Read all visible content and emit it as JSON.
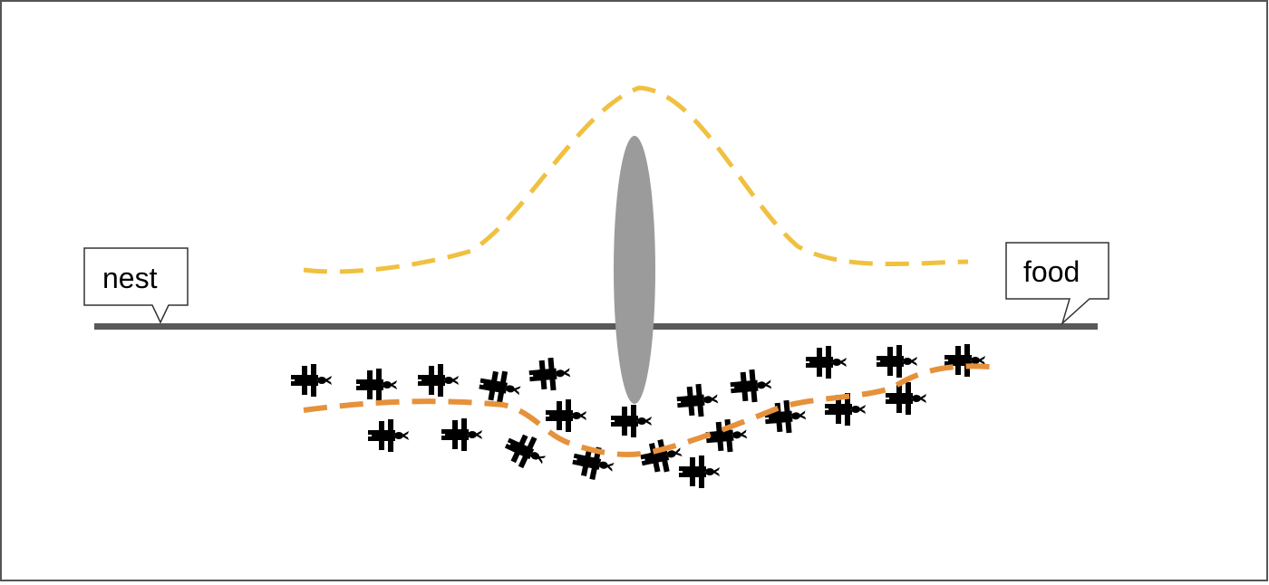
{
  "labels": {
    "nest": "nest",
    "food": "food"
  },
  "colors": {
    "frame": "#555555",
    "ground": "#595959",
    "obstacle": "#9b9b9b",
    "upper_path": "#f0c040",
    "lower_path": "#e6913b",
    "ant": "#000000",
    "callout_stroke": "#333333",
    "callout_fill": "#ffffff"
  },
  "icons": {
    "ant": "ant-icon",
    "obstacle": "obstacle-ellipse"
  },
  "ant_count": 24
}
